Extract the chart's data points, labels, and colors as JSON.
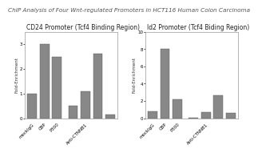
{
  "title": "ChIP Analysis of Four Wnt-regulated Promoters in HCT116 Human Colon Carcinoma",
  "chart1": {
    "title": "CD24 Promoter (Tcf4 Binding Region)",
    "values": [
      1.0,
      3.0,
      2.5,
      0.5,
      1.1,
      2.6,
      0.15
    ],
    "x_labels": [
      "mockIgG",
      "CBP",
      "P300",
      "",
      "Anti-CTNNB1",
      "",
      ""
    ],
    "ylim": [
      0,
      3.5
    ],
    "yticks": [
      0,
      1,
      2,
      3
    ],
    "ylabel": "Fold-Enrichment"
  },
  "chart2": {
    "title": "Id2 Promoter (Tcf4 Biding Region)",
    "values": [
      0.8,
      8.0,
      2.2,
      0.05,
      0.7,
      2.7,
      0.6
    ],
    "x_labels": [
      "mockIgG",
      "CBP",
      "P300",
      "",
      "Anti-CTNNB1",
      "",
      ""
    ],
    "ylim": [
      0,
      10
    ],
    "yticks": [
      0,
      2,
      4,
      6,
      8,
      10
    ],
    "ylabel": "Fold-Enrichment"
  },
  "bar_color": "#888888",
  "bar_edge_color": "#555555",
  "title_fontsize": 5.2,
  "chart_title_fontsize": 5.5,
  "tick_fontsize": 4.0,
  "ylabel_fontsize": 4.0,
  "bg_color": "#ffffff",
  "plot_bg": "#ffffff",
  "border_color": "#aaaaaa"
}
